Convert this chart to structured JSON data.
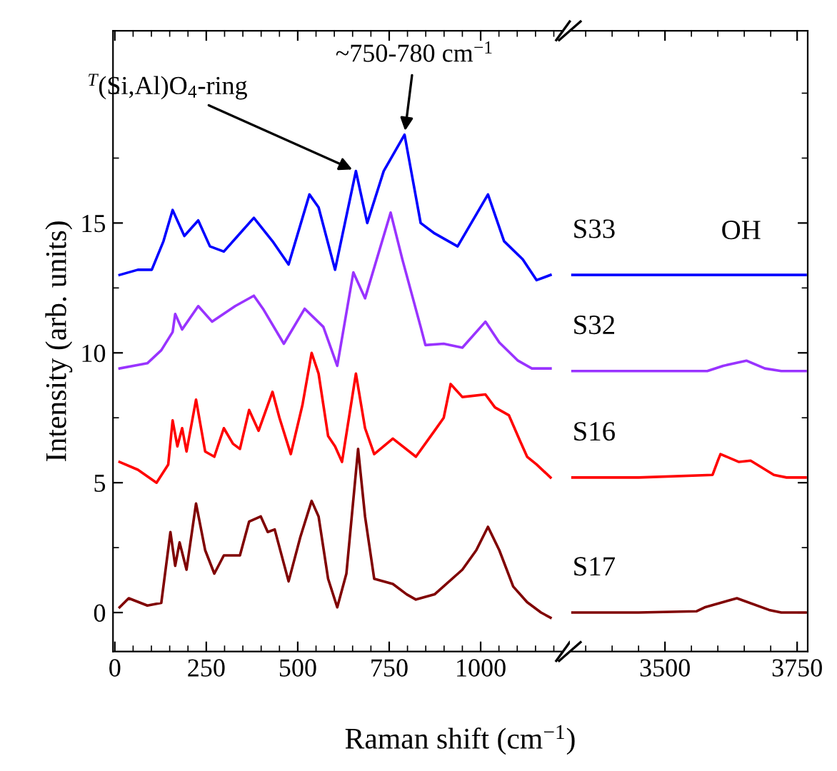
{
  "chart_data": [
    {
      "type": "line",
      "ylabel": "Intensity (arb. units)",
      "xlabel": "Raman shift (cm$^{−1}$)",
      "xlim": [
        -5,
        1225
      ],
      "xticks": [
        0,
        250,
        500,
        750,
        1000
      ],
      "ylim": [
        -1.5,
        22.4
      ],
      "yticks": [
        0,
        5,
        10,
        15
      ],
      "series": [
        {
          "color": "#0000ff",
          "x": [
            13,
            63,
            101,
            133,
            158,
            190,
            228,
            260,
            298,
            342,
            380,
            431,
            475,
            532,
            557,
            602,
            659,
            690,
            735,
            792,
            836,
            874,
            937,
            1020,
            1064,
            1115,
            1153,
            1191
          ],
          "values": [
            13.0,
            13.2,
            13.2,
            14.3,
            15.5,
            14.5,
            15.1,
            14.1,
            13.9,
            14.6,
            15.2,
            14.3,
            13.4,
            16.1,
            15.6,
            13.2,
            17.0,
            15.0,
            17.0,
            18.4,
            15.0,
            14.6,
            14.1,
            16.1,
            14.3,
            13.6,
            12.8,
            13.0
          ]
        },
        {
          "color": "#9933ff",
          "x": [
            13,
            89,
            127,
            158,
            165,
            184,
            228,
            266,
            329,
            380,
            405,
            462,
            519,
            570,
            608,
            652,
            684,
            754,
            786,
            836,
            849,
            899,
            950,
            1013,
            1051,
            1102,
            1140,
            1191
          ],
          "values": [
            9.4,
            9.6,
            10.1,
            10.8,
            11.5,
            10.9,
            11.8,
            11.2,
            11.8,
            12.2,
            11.7,
            10.35,
            11.7,
            11.0,
            9.5,
            13.1,
            12.1,
            15.4,
            13.6,
            11.0,
            10.3,
            10.35,
            10.2,
            11.2,
            10.4,
            9.7,
            9.4,
            9.4
          ]
        },
        {
          "color": "#ff0000",
          "x": [
            13,
            63,
            114,
            146,
            158,
            171,
            184,
            196,
            222,
            247,
            272,
            298,
            323,
            342,
            367,
            393,
            431,
            450,
            481,
            513,
            538,
            557,
            583,
            602,
            621,
            659,
            684,
            709,
            760,
            823,
            874,
            899,
            918,
            950,
            1013,
            1039,
            1077,
            1108,
            1127,
            1153,
            1191
          ],
          "values": [
            5.8,
            5.5,
            5.0,
            5.7,
            7.4,
            6.4,
            7.1,
            6.2,
            8.2,
            6.2,
            6.0,
            7.1,
            6.5,
            6.3,
            7.8,
            7.0,
            8.5,
            7.5,
            6.1,
            8.0,
            10.0,
            9.2,
            6.8,
            6.4,
            5.8,
            9.2,
            7.1,
            6.1,
            6.7,
            6.0,
            7.0,
            7.5,
            8.8,
            8.3,
            8.4,
            7.9,
            7.6,
            6.6,
            6.0,
            5.7,
            5.2
          ]
        },
        {
          "color": "#800000",
          "x": [
            13,
            38,
            89,
            127,
            152,
            165,
            177,
            196,
            222,
            247,
            272,
            298,
            342,
            367,
            399,
            418,
            437,
            475,
            507,
            538,
            557,
            583,
            608,
            633,
            665,
            684,
            709,
            760,
            798,
            823,
            874,
            950,
            988,
            1020,
            1051,
            1089,
            1127,
            1165,
            1191
          ],
          "values": [
            0.2,
            0.55,
            0.27,
            0.37,
            3.1,
            1.8,
            2.7,
            1.65,
            4.2,
            2.4,
            1.5,
            2.2,
            2.2,
            3.5,
            3.7,
            3.1,
            3.2,
            1.2,
            2.9,
            4.3,
            3.7,
            1.3,
            0.2,
            1.5,
            6.3,
            3.7,
            1.3,
            1.1,
            0.7,
            0.5,
            0.7,
            1.65,
            2.4,
            3.3,
            2.4,
            1.0,
            0.4,
            0.0,
            -0.2
          ]
        }
      ],
      "annotations": [
        {
          "text": "$^{T}$(Si,Al)O$_{4}$-ring",
          "x": 659,
          "y": 17.0
        },
        {
          "text": "~750-780 cm$^{−1}$",
          "x": 792,
          "y": 18.4
        }
      ]
    },
    {
      "type": "line",
      "tick_labels": "x",
      "xlim": [
        3320,
        3770
      ],
      "xticks": [
        3500,
        3750
      ],
      "ylim": [
        -1.5,
        22.4
      ],
      "yticks": [
        0,
        5,
        10,
        15
      ],
      "series": [
        {
          "name": "S33",
          "color": "#0000ff",
          "x": [
            3325,
            3400,
            3500,
            3600,
            3700,
            3766
          ],
          "values": [
            13.0,
            13.0,
            13.0,
            13.0,
            13.0,
            13.0
          ]
        },
        {
          "name": "S32",
          "color": "#9933ff",
          "x": [
            3325,
            3450,
            3580,
            3610,
            3654,
            3689,
            3720,
            3766
          ],
          "values": [
            9.3,
            9.3,
            9.3,
            9.5,
            9.7,
            9.4,
            9.3,
            9.3
          ]
        },
        {
          "name": "S16",
          "color": "#ff0000",
          "x": [
            3325,
            3450,
            3590,
            3601,
            3605,
            3640,
            3662,
            3706,
            3730,
            3766
          ],
          "values": [
            5.2,
            5.2,
            5.3,
            5.9,
            6.1,
            5.8,
            5.85,
            5.3,
            5.2,
            5.2
          ]
        },
        {
          "name": "S17",
          "color": "#800000",
          "x": [
            3325,
            3450,
            3560,
            3575,
            3636,
            3697,
            3720,
            3766
          ],
          "values": [
            0.0,
            0.0,
            0.05,
            0.2,
            0.55,
            0.1,
            0.0,
            0.0
          ]
        }
      ],
      "annotations": [
        "OH"
      ]
    }
  ]
}
